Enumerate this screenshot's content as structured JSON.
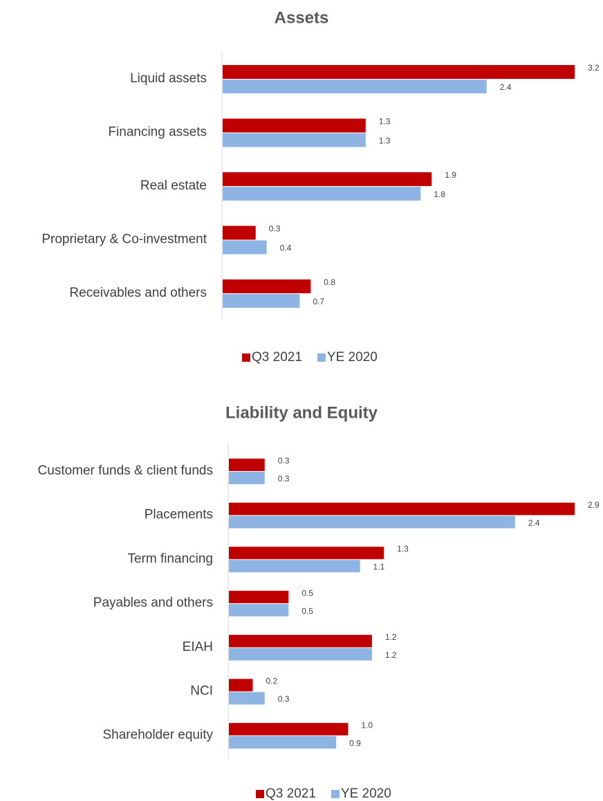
{
  "chart_data": [
    {
      "type": "hbar",
      "title": "Assets",
      "categories": [
        "Liquid assets",
        "Financing assets",
        "Real estate",
        "Proprietary & Co-investment",
        "Receivables and others"
      ],
      "series": [
        {
          "name": "Q3 2021",
          "color": "#c00000",
          "values": [
            3.2,
            1.3,
            1.9,
            0.3,
            0.8
          ]
        },
        {
          "name": "YE 2020",
          "color": "#8eb4e3",
          "values": [
            2.4,
            1.3,
            1.8,
            0.4,
            0.7
          ]
        }
      ]
    },
    {
      "type": "hbar",
      "title": "Liability and Equity",
      "categories": [
        "Customer funds & client funds",
        "Placements",
        "Term financing",
        "Payables and others",
        "EIAH",
        "NCI",
        "Shareholder equity"
      ],
      "series": [
        {
          "name": "Q3 2021",
          "color": "#c00000",
          "values": [
            0.3,
            2.9,
            1.3,
            0.5,
            1.2,
            0.2,
            1
          ],
          "value_labels": [
            "0.3",
            "2.9",
            "1.3",
            "0.5",
            "1.2",
            "0.2",
            "1.0"
          ]
        },
        {
          "name": "YE 2020",
          "color": "#8eb4e3",
          "values": [
            0.3,
            2.4,
            1.1,
            0.5,
            1.2,
            0.3,
            0.9
          ]
        }
      ]
    }
  ]
}
